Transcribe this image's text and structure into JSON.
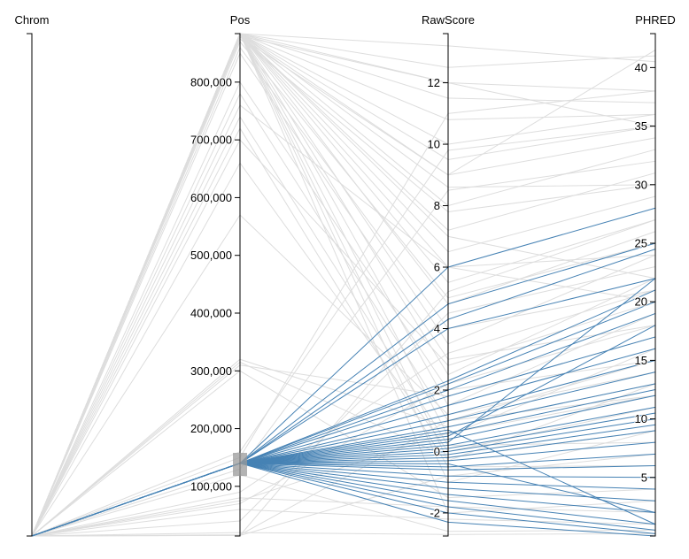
{
  "chart_data": {
    "type": "parallel-coordinates",
    "dimensions": [
      {
        "name": "Chrom",
        "ticks": []
      },
      {
        "name": "Pos",
        "domain": [
          14000,
          884000
        ],
        "ticks": [
          100000,
          200000,
          300000,
          400000,
          500000,
          600000,
          700000,
          800000
        ],
        "tick_labels": [
          "100,000",
          "200,000",
          "300,000",
          "400,000",
          "500,000",
          "600,000",
          "700,000",
          "800,000"
        ]
      },
      {
        "name": "RawScore",
        "domain": [
          -2.75,
          13.6
        ],
        "ticks": [
          -2,
          0,
          2,
          4,
          6,
          8,
          10,
          12
        ],
        "tick_labels": [
          "-2",
          "0",
          "2",
          "4",
          "6",
          "8",
          "10",
          "12"
        ]
      },
      {
        "name": "PHRED",
        "domain": [
          0,
          42.9
        ],
        "ticks": [
          5,
          10,
          15,
          20,
          25,
          30,
          35,
          40
        ],
        "tick_labels": [
          "5",
          "10",
          "15",
          "20",
          "25",
          "30",
          "35",
          "40"
        ]
      }
    ],
    "brush": {
      "dimension": "Pos",
      "range": [
        118000,
        158000
      ]
    },
    "colors": {
      "selected": "#4682b4",
      "unselected": "#dddddd",
      "brush": "#999999"
    },
    "unselected_lines": [
      [
        884000,
        13.2,
        40.5
      ],
      [
        884000,
        12.5,
        41
      ],
      [
        884000,
        11.5,
        37
      ],
      [
        884000,
        10.8,
        36
      ],
      [
        884000,
        9.5,
        35
      ],
      [
        884000,
        8,
        33
      ],
      [
        884000,
        7.2,
        31
      ],
      [
        884000,
        6.5,
        29
      ],
      [
        884000,
        5.5,
        27
      ],
      [
        884000,
        4.8,
        26
      ],
      [
        884000,
        3.5,
        24
      ],
      [
        884000,
        2.5,
        22
      ],
      [
        884000,
        1.5,
        19
      ],
      [
        884000,
        0.5,
        16
      ],
      [
        884000,
        -0.3,
        13
      ],
      [
        884000,
        -1,
        9
      ],
      [
        880000,
        12,
        38
      ],
      [
        878000,
        9,
        34
      ],
      [
        875000,
        7.8,
        30
      ],
      [
        870000,
        5,
        25
      ],
      [
        860000,
        4,
        21
      ],
      [
        850000,
        3,
        18
      ],
      [
        800000,
        2,
        15
      ],
      [
        780000,
        1,
        12
      ],
      [
        760000,
        6,
        24
      ],
      [
        740000,
        0.2,
        8
      ],
      [
        720000,
        -0.5,
        6
      ],
      [
        700000,
        2.8,
        20
      ],
      [
        660000,
        0,
        11
      ],
      [
        570000,
        1.2,
        14
      ],
      [
        320000,
        0.8,
        13
      ],
      [
        315000,
        -0.2,
        9
      ],
      [
        310000,
        1.8,
        17
      ],
      [
        300000,
        -1.5,
        4
      ],
      [
        160000,
        9.8,
        35
      ],
      [
        150000,
        11,
        38
      ],
      [
        130000,
        8.5,
        32
      ],
      [
        120000,
        -2.6,
        0.5
      ],
      [
        90000,
        3.2,
        21
      ],
      [
        80000,
        -1.8,
        2
      ],
      [
        75000,
        0.6,
        12
      ],
      [
        70000,
        2.2,
        18
      ],
      [
        60000,
        -2.2,
        1
      ],
      [
        40000,
        4.5,
        23
      ],
      [
        20000,
        -2.7,
        0.2
      ],
      [
        16000,
        1,
        15
      ],
      [
        15000,
        -0.8,
        7
      ],
      [
        15000,
        5.2,
        27
      ],
      [
        884000,
        -2,
        3
      ],
      [
        884000,
        10,
        36
      ],
      [
        884000,
        8.6,
        30
      ],
      [
        884000,
        9,
        41.5
      ],
      [
        884000,
        12,
        35
      ],
      [
        884000,
        7,
        22
      ],
      [
        884000,
        6,
        20
      ]
    ],
    "selected_lines": [
      [
        140000,
        6,
        28
      ],
      [
        140000,
        4.8,
        25
      ],
      [
        140000,
        4.3,
        24.5
      ],
      [
        140000,
        4,
        22
      ],
      [
        140000,
        2.3,
        21
      ],
      [
        140000,
        2.2,
        20
      ],
      [
        140000,
        2,
        19
      ],
      [
        140000,
        1.8,
        17
      ],
      [
        140000,
        1.5,
        16
      ],
      [
        140000,
        1.2,
        15
      ],
      [
        140000,
        1,
        14
      ],
      [
        140000,
        0.8,
        13
      ],
      [
        140000,
        0.6,
        12.5
      ],
      [
        140000,
        0.4,
        12
      ],
      [
        140000,
        0.2,
        11
      ],
      [
        140000,
        0.1,
        10.5
      ],
      [
        140000,
        0,
        10
      ],
      [
        140000,
        -0.1,
        9.5
      ],
      [
        140000,
        -0.2,
        9
      ],
      [
        140000,
        -0.3,
        8
      ],
      [
        140000,
        -0.5,
        7
      ],
      [
        140000,
        -0.6,
        6
      ],
      [
        140000,
        -0.8,
        5
      ],
      [
        140000,
        -1,
        4
      ],
      [
        140000,
        -1.2,
        3
      ],
      [
        140000,
        -1.4,
        2
      ],
      [
        140000,
        -1.6,
        1
      ],
      [
        140000,
        -1.8,
        0.5
      ],
      [
        140000,
        -2,
        0.2
      ],
      [
        140000,
        -2.3,
        0
      ],
      [
        140000,
        0.3,
        22
      ],
      [
        140000,
        0.5,
        18
      ],
      [
        140000,
        -0.4,
        2
      ],
      [
        140000,
        0.7,
        1
      ]
    ]
  }
}
